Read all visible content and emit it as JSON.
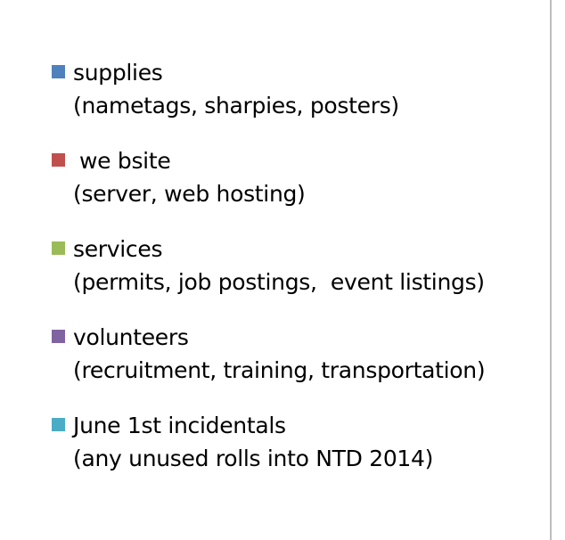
{
  "chart_data": {
    "type": "pie",
    "legend": [
      {
        "label": "supplies",
        "detail": "(nametags, sharpies, posters)",
        "color": "#4F81BD"
      },
      {
        "label": "we bsite",
        "detail": "(server, web hosting)",
        "color": "#C0504D"
      },
      {
        "label": "services",
        "detail": "(permits, job postings,  event listings)",
        "color": "#9BBB59"
      },
      {
        "label": "volunteers",
        "detail": "(recruitment, training, transportation)",
        "color": "#8064A2"
      },
      {
        "label": "June 1st incidentals",
        "detail": "(any unused rolls into NTD 2014)",
        "color": "#4BACC6"
      }
    ]
  }
}
